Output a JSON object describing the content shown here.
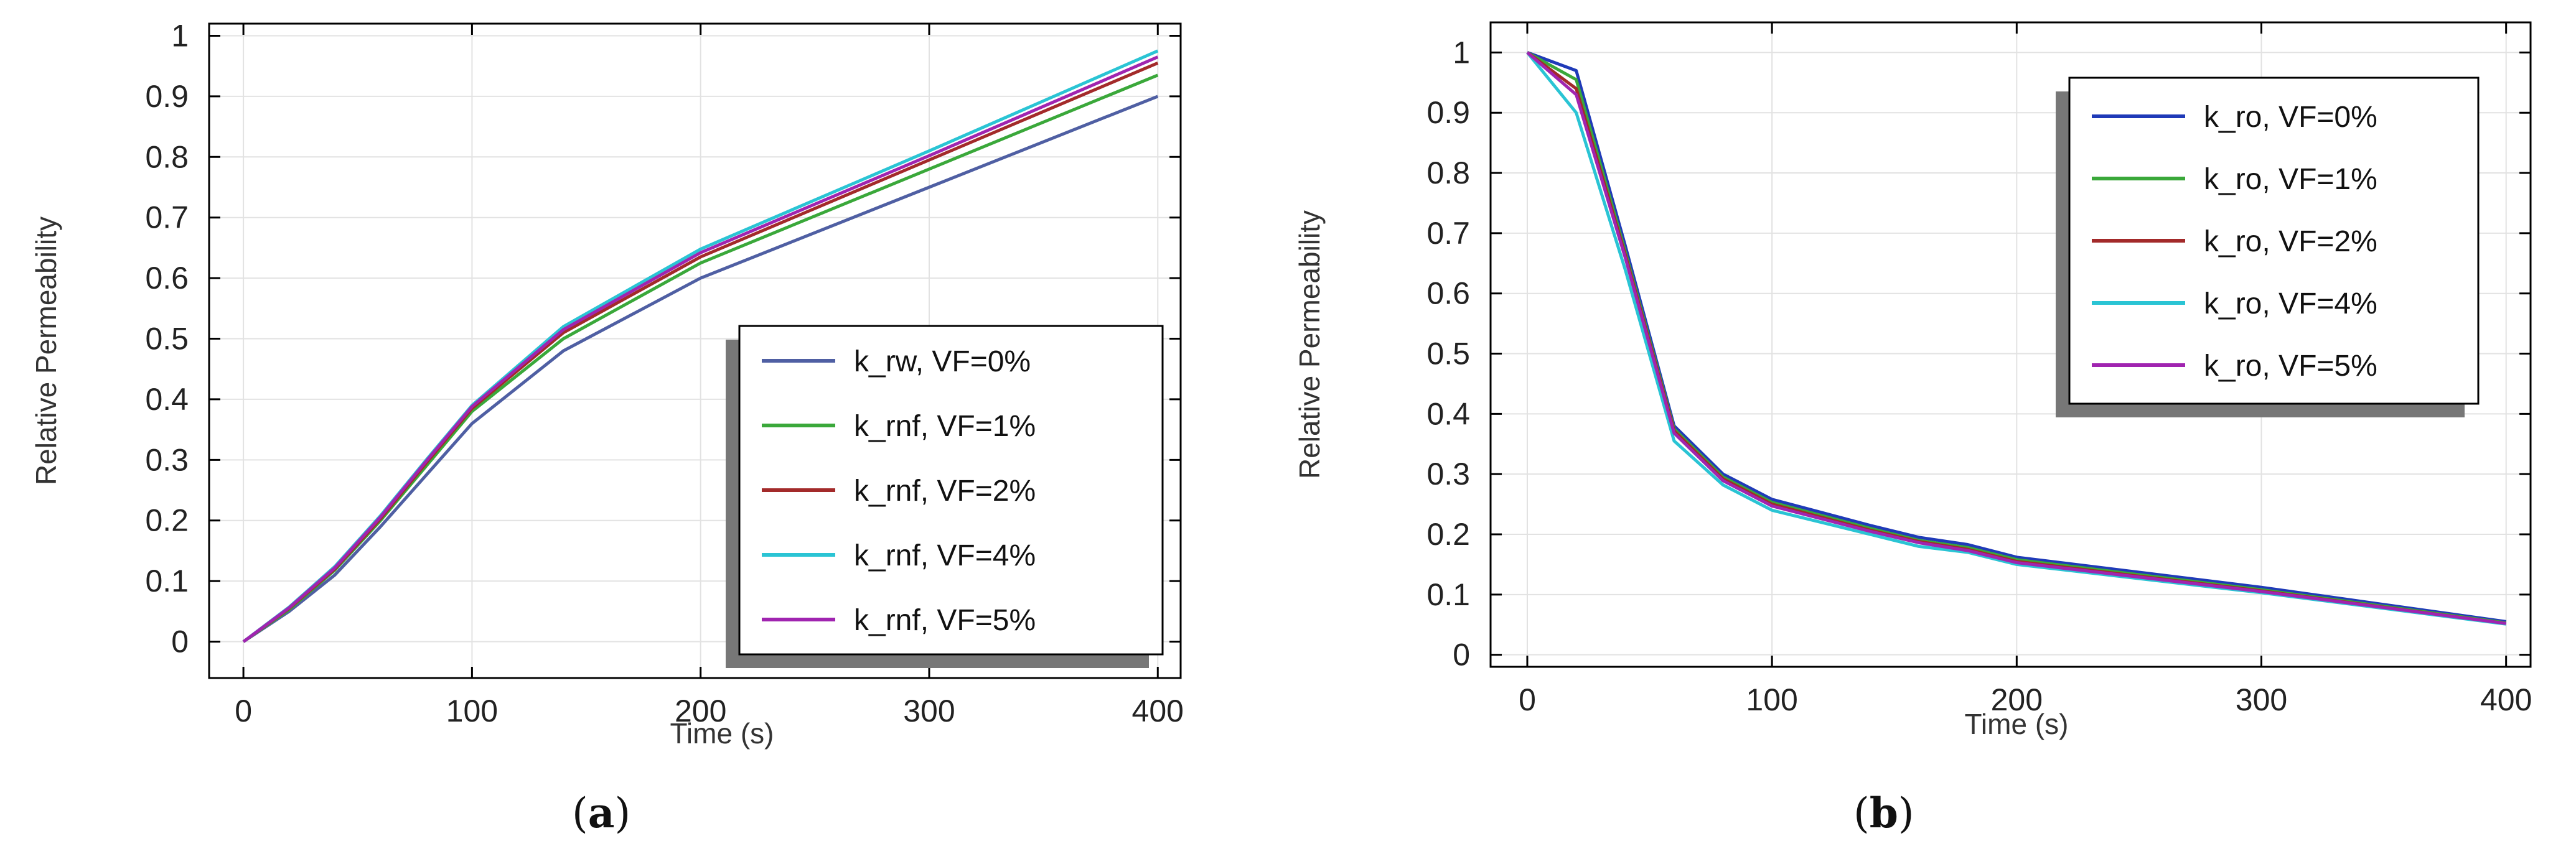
{
  "chart_data": [
    {
      "type": "line",
      "panel_label": "a",
      "title": "",
      "xlabel": "Time (s)",
      "ylabel": "Relative Permeability",
      "xlim": [
        -15,
        410
      ],
      "ylim": [
        -0.06,
        1.02
      ],
      "xticks": [
        0,
        100,
        200,
        300,
        400
      ],
      "yticks": [
        0,
        0.1,
        0.2,
        0.3,
        0.4,
        0.5,
        0.6,
        0.7,
        0.8,
        0.9,
        1
      ],
      "ytick_labels": [
        "0",
        "0.1",
        "0.2",
        "0.3",
        "0.4",
        "0.5",
        "0.6",
        "0.7",
        "0.8",
        "0.9",
        "1"
      ],
      "grid": true,
      "legend_position": "lower-right",
      "x": [
        0,
        20,
        40,
        60,
        80,
        100,
        140,
        200,
        300,
        400
      ],
      "series": [
        {
          "name": "k_rw, VF=0%",
          "color": "#4f5fa3",
          "values": [
            0,
            0.05,
            0.11,
            0.19,
            0.275,
            0.36,
            0.48,
            0.6,
            0.75,
            0.9
          ]
        },
        {
          "name": "k_rnf, VF=1%",
          "color": "#3aa83a",
          "values": [
            0,
            0.053,
            0.118,
            0.2,
            0.29,
            0.38,
            0.5,
            0.625,
            0.78,
            0.935
          ]
        },
        {
          "name": "k_rnf, VF=2%",
          "color": "#a32a2a",
          "values": [
            0,
            0.055,
            0.12,
            0.203,
            0.295,
            0.385,
            0.51,
            0.635,
            0.795,
            0.955
          ]
        },
        {
          "name": "k_rnf, VF=4%",
          "color": "#2ac4d4",
          "values": [
            0,
            0.057,
            0.124,
            0.208,
            0.3,
            0.39,
            0.52,
            0.648,
            0.81,
            0.975
          ]
        },
        {
          "name": "k_rnf, VF=5%",
          "color": "#a024b0",
          "values": [
            0,
            0.056,
            0.122,
            0.206,
            0.298,
            0.388,
            0.515,
            0.642,
            0.802,
            0.965
          ]
        }
      ]
    },
    {
      "type": "line",
      "panel_label": "b",
      "title": "",
      "xlabel": "Time (s)",
      "ylabel": "Relative Permeability",
      "xlim": [
        -15,
        410
      ],
      "ylim": [
        -0.02,
        1.05
      ],
      "xticks": [
        0,
        100,
        200,
        300,
        400
      ],
      "yticks": [
        0,
        0.1,
        0.2,
        0.3,
        0.4,
        0.5,
        0.6,
        0.7,
        0.8,
        0.9,
        1
      ],
      "ytick_labels": [
        "0",
        "0.1",
        "0.2",
        "0.3",
        "0.4",
        "0.5",
        "0.6",
        "0.7",
        "0.8",
        "0.9",
        "1"
      ],
      "grid": true,
      "legend_position": "top-right",
      "x": [
        0,
        20,
        40,
        60,
        80,
        100,
        140,
        160,
        180,
        200,
        300,
        400
      ],
      "series": [
        {
          "name": "k_ro, VF=0%",
          "color": "#1f3ab8",
          "values": [
            1,
            0.97,
            0.68,
            0.38,
            0.3,
            0.258,
            0.215,
            0.195,
            0.183,
            0.162,
            0.112,
            0.055
          ]
        },
        {
          "name": "k_ro, VF=1%",
          "color": "#3aa83a",
          "values": [
            1,
            0.955,
            0.67,
            0.375,
            0.295,
            0.253,
            0.21,
            0.19,
            0.178,
            0.158,
            0.108,
            0.053
          ]
        },
        {
          "name": "k_ro, VF=2%",
          "color": "#a32a2a",
          "values": [
            1,
            0.94,
            0.665,
            0.372,
            0.292,
            0.25,
            0.207,
            0.188,
            0.175,
            0.155,
            0.106,
            0.052
          ]
        },
        {
          "name": "k_ro, VF=4%",
          "color": "#2ac4d4",
          "values": [
            1,
            0.9,
            0.64,
            0.355,
            0.282,
            0.24,
            0.2,
            0.18,
            0.17,
            0.15,
            0.103,
            0.051
          ]
        },
        {
          "name": "k_ro, VF=5%",
          "color": "#a024b0",
          "values": [
            1,
            0.93,
            0.66,
            0.368,
            0.289,
            0.247,
            0.205,
            0.186,
            0.173,
            0.153,
            0.105,
            0.052
          ]
        }
      ]
    }
  ]
}
